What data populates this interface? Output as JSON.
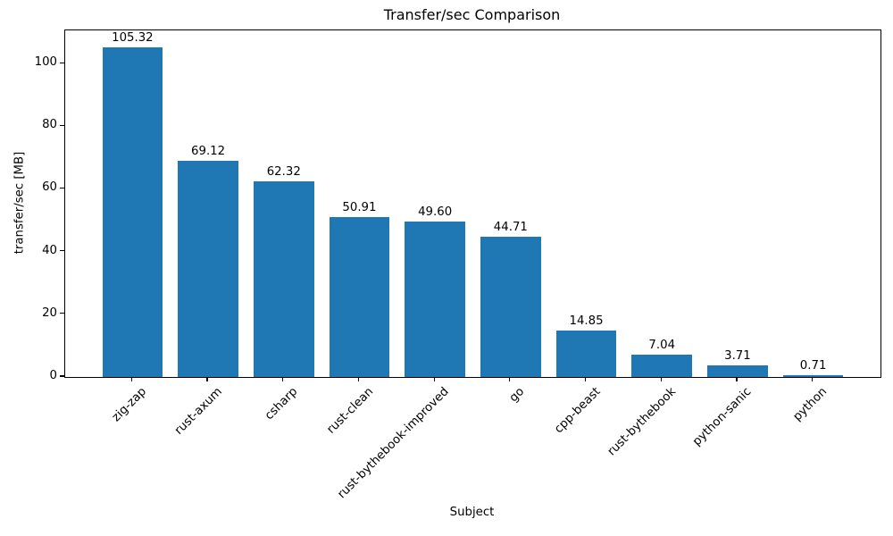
{
  "chart_data": {
    "type": "bar",
    "title": "Transfer/sec Comparison",
    "xlabel": "Subject",
    "ylabel": "transfer/sec [MB]",
    "categories": [
      "zig-zap",
      "rust-axum",
      "csharp",
      "rust-clean",
      "rust-bythebook-improved",
      "go",
      "cpp-beast",
      "rust-bythebook",
      "python-sanic",
      "python"
    ],
    "values": [
      105.32,
      69.12,
      62.32,
      50.91,
      49.6,
      44.71,
      14.85,
      7.04,
      3.71,
      0.71
    ],
    "bar_labels": [
      "105.32",
      "69.12",
      "62.32",
      "50.91",
      "49.60",
      "44.71",
      "14.85",
      "7.04",
      "3.71",
      "0.71"
    ],
    "yticks": [
      0,
      20,
      40,
      60,
      80,
      100
    ],
    "ylim": [
      0,
      110.59
    ],
    "xlim": [
      -0.89,
      9.89
    ],
    "bar_width": 0.8,
    "bar_color": "#1f77b4",
    "grid": false,
    "legend_position": "none",
    "x_tick_rotation_deg": 45
  }
}
